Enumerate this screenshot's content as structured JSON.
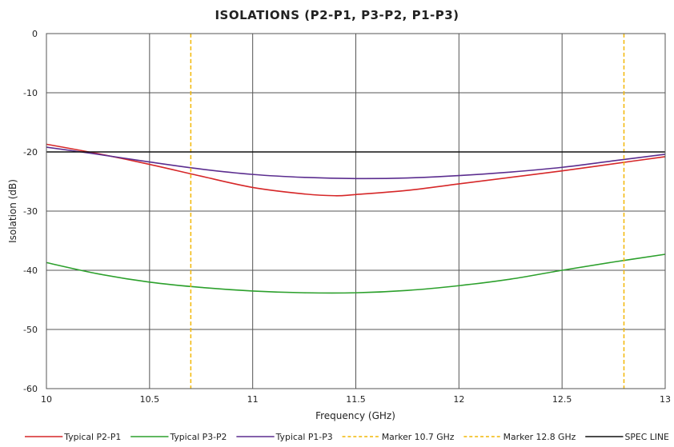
{
  "chart_data": {
    "type": "line",
    "title": "ISOLATIONS (P2-P1, P3-P2, P1-P3)",
    "xlabel": "Frequency (GHz)",
    "ylabel": "Isolation (dB)",
    "xlim": [
      10,
      13
    ],
    "ylim": [
      -60,
      0
    ],
    "x_ticks": [
      10,
      10.5,
      11,
      11.5,
      12,
      12.5,
      13
    ],
    "x_tick_labels": [
      "10",
      "10.5",
      "11",
      "11.5",
      "12",
      "12.5",
      "13"
    ],
    "y_ticks": [
      0,
      -10,
      -20,
      -30,
      -40,
      -50,
      -60
    ],
    "y_tick_labels": [
      "0",
      "-10",
      "-20",
      "-30",
      "-40",
      "-50",
      "-60"
    ],
    "grid": true,
    "legend_position": "bottom",
    "series": [
      {
        "name": "Typical P2-P1",
        "color": "#d62728",
        "style": "solid",
        "x": [
          10,
          10.25,
          10.5,
          10.75,
          11,
          11.25,
          11.4,
          11.5,
          11.75,
          12,
          12.25,
          12.5,
          12.75,
          13
        ],
        "y": [
          -18.7,
          -20.3,
          -22.1,
          -24.1,
          -26.0,
          -27.1,
          -27.4,
          -27.2,
          -26.5,
          -25.4,
          -24.3,
          -23.2,
          -22.0,
          -20.8
        ]
      },
      {
        "name": "Typical P3-P2",
        "color": "#2ca02c",
        "style": "solid",
        "x": [
          10,
          10.25,
          10.5,
          10.75,
          11,
          11.25,
          11.5,
          11.75,
          12,
          12.25,
          12.5,
          12.75,
          13
        ],
        "y": [
          -38.7,
          -40.6,
          -42.0,
          -42.9,
          -43.5,
          -43.8,
          -43.8,
          -43.4,
          -42.6,
          -41.5,
          -40.0,
          -38.6,
          -37.3
        ]
      },
      {
        "name": "Typical P1-P3",
        "color": "#5b2d8f",
        "style": "solid",
        "x": [
          10,
          10.25,
          10.5,
          10.75,
          11,
          11.25,
          11.5,
          11.75,
          12,
          12.25,
          12.5,
          12.75,
          13
        ],
        "y": [
          -19.2,
          -20.4,
          -21.7,
          -22.9,
          -23.8,
          -24.3,
          -24.5,
          -24.4,
          -24.0,
          -23.4,
          -22.6,
          -21.5,
          -20.4
        ]
      },
      {
        "name": "Marker 10.7 GHz",
        "color": "#f2b705",
        "style": "dashed",
        "x": [
          10.7,
          10.7
        ],
        "y": [
          0,
          -60
        ]
      },
      {
        "name": "Marker 12.8 GHz",
        "color": "#f2b705",
        "style": "dashed",
        "x": [
          12.8,
          12.8
        ],
        "y": [
          0,
          -60
        ]
      },
      {
        "name": "SPEC LINE",
        "color": "#111111",
        "style": "solid",
        "x": [
          10,
          13
        ],
        "y": [
          -20,
          -20
        ]
      }
    ]
  }
}
